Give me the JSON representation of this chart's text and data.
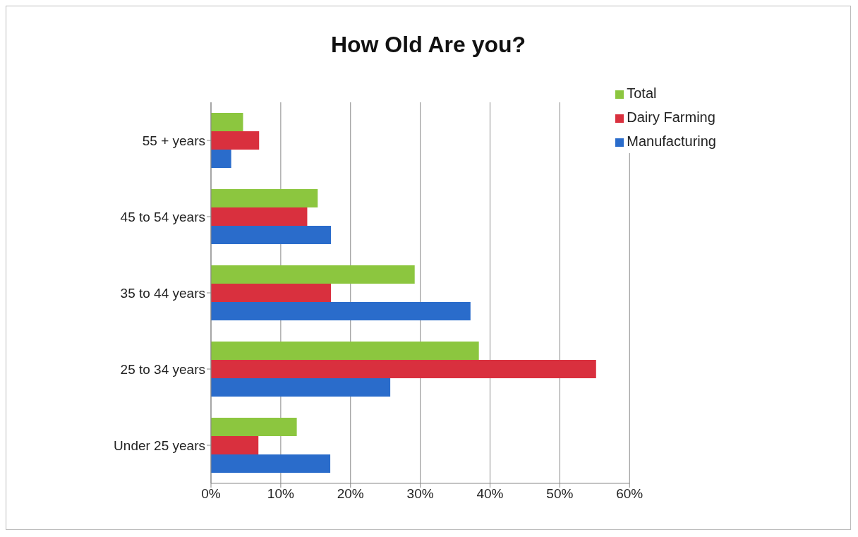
{
  "chart_data": {
    "type": "bar",
    "orientation": "horizontal",
    "title": "How Old Are you?",
    "categories": [
      "55 + years",
      "45 to 54 years",
      "35 to 44 years",
      "25 to 34 years",
      "Under 25 years"
    ],
    "series": [
      {
        "name": "Total",
        "color": "#8cc63f",
        "values": [
          4.6,
          15.3,
          29.2,
          38.4,
          12.3
        ]
      },
      {
        "name": "Dairy Farming",
        "color": "#d9303e",
        "values": [
          6.9,
          13.8,
          17.2,
          55.2,
          6.8
        ]
      },
      {
        "name": "Manufacturing",
        "color": "#2a6ccb",
        "values": [
          2.9,
          17.2,
          37.2,
          25.7,
          17.1
        ]
      }
    ],
    "xlim": [
      0,
      60
    ],
    "xticks": [
      {
        "value": 0,
        "label": "0%"
      },
      {
        "value": 10,
        "label": "10%"
      },
      {
        "value": 20,
        "label": "20%"
      },
      {
        "value": 30,
        "label": "30%"
      },
      {
        "value": 40,
        "label": "40%"
      },
      {
        "value": 50,
        "label": "50%"
      },
      {
        "value": 60,
        "label": "60%"
      }
    ],
    "grid": "x",
    "legend": "top right"
  }
}
